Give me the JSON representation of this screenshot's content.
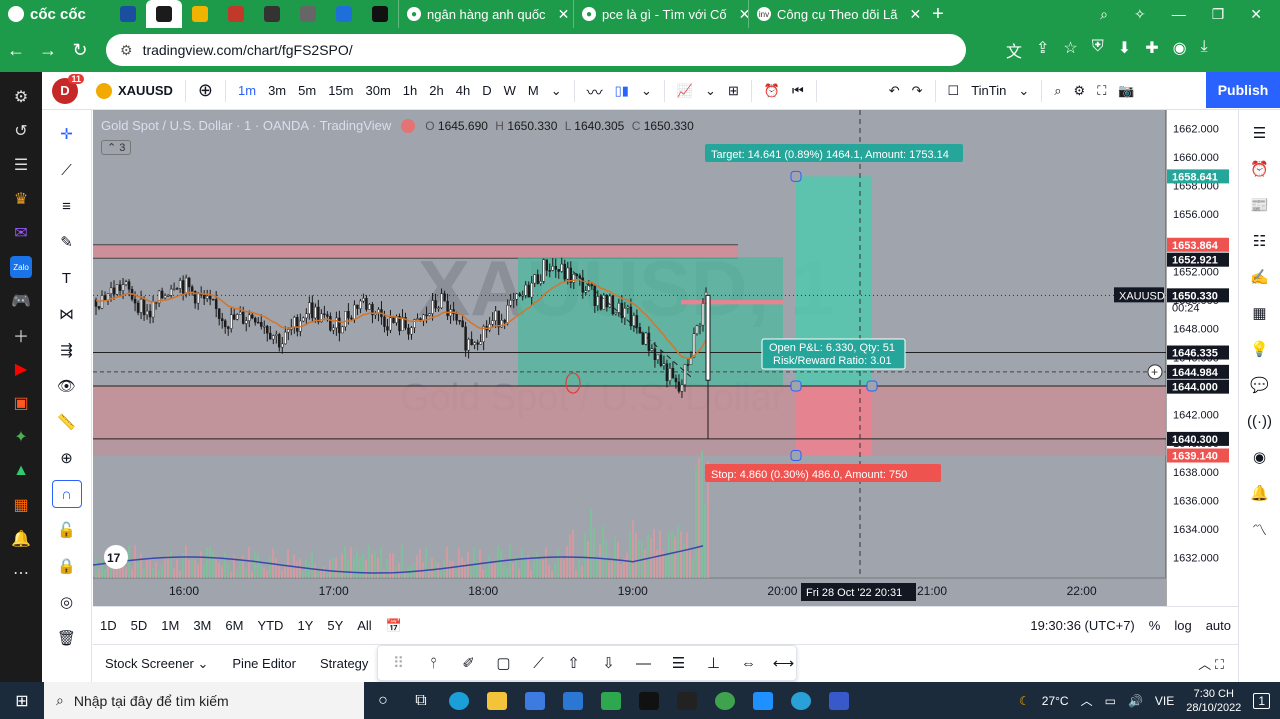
{
  "browser": {
    "brand": "cốc cốc",
    "tabs": [
      {
        "title": "ngân hàng anh quốc",
        "close": "✕"
      },
      {
        "title": "pce là gì - Tìm với Cố",
        "close": "✕"
      },
      {
        "title": "Công cụ Theo dõi Lã",
        "close": "✕"
      }
    ],
    "pinned_favicon_colors": [
      "#1a4fa0",
      "#1b1b1b",
      "#f0b400",
      "#c0392b",
      "#333333",
      "#666666",
      "#1e6fd9",
      "#111111"
    ],
    "url": "tradingview.com/chart/fgFS2SPO/"
  },
  "tv": {
    "avatar": "D",
    "notifications": "11",
    "symbol": "XAUUSD",
    "intervals": [
      "1m",
      "3m",
      "5m",
      "15m",
      "30m",
      "1h",
      "2h",
      "4h",
      "D",
      "W",
      "M"
    ],
    "active_interval": "1m",
    "layout_name": "TinTin",
    "publish": "Publish",
    "legend": {
      "title": "Gold Spot / U.S. Dollar · 1 · OANDA · TradingView",
      "o_label": "O",
      "o": "1645.690",
      "h_label": "H",
      "h": "1650.330",
      "l_label": "L",
      "l": "1640.305",
      "c_label": "C",
      "c": "1650.330",
      "indicators_count": "3"
    },
    "watermark": {
      "symbol": "XAUUSD, 1",
      "name": "Gold Spot / U.S. Dollar"
    },
    "price_axis": [
      "1662.000",
      "1660.000",
      "1658.000",
      "1656.000",
      "1654.000",
      "1652.000",
      "1650.000",
      "1648.000",
      "1646.000",
      "1644.000",
      "1642.000",
      "1640.000",
      "1638.000",
      "1636.000",
      "1634.000",
      "1632.000"
    ],
    "price_tags": {
      "target": "1658.641",
      "red_upper": "1653.864",
      "black1": "1652.921",
      "current": "1650.330",
      "countdown": "00:24",
      "symbol_tag": "XAUUSD",
      "l1": "1646.335",
      "l2": "1644.984",
      "l3": "1644.000",
      "l4": "1640.300",
      "stop": "1639.140"
    },
    "time_axis": [
      "16:00",
      "17:00",
      "18:00",
      "19:00",
      "20:00",
      "21:00",
      "22:00"
    ],
    "crosshair_time": "Fri 28 Oct '22   20:31",
    "target_label": "Target: 14.641 (0.89%) 1464.1, Amount: 1753.14",
    "pnl_label_1": "Open P&L: 6.330, Qty: 51",
    "pnl_label_2": "Risk/Reward Ratio: 3.01",
    "stop_label": "Stop: 4.860 (0.30%) 486.0, Amount: 750",
    "ranges": [
      "1D",
      "5D",
      "1M",
      "3M",
      "6M",
      "YTD",
      "1Y",
      "5Y",
      "All"
    ],
    "clock": "19:30:36 (UTC+7)",
    "scale_opts": [
      "%",
      "log",
      "auto"
    ],
    "bottom_tabs": [
      "Stock Screener",
      "Pine Editor",
      "Strategy"
    ]
  },
  "taskbar": {
    "search_placeholder": "Nhập tại đây để tìm kiếm",
    "temperature": "27°C",
    "lang": "VIE",
    "time": "7:30 CH",
    "date": "28/10/2022",
    "notif_count": "1"
  },
  "chart_data": {
    "type": "candlestick",
    "symbol": "XAUUSD",
    "title": "Gold Spot / U.S. Dollar · 1 · OANDA",
    "ylim": [
      1631,
      1663
    ],
    "x": [
      "16:00",
      "17:00",
      "18:00",
      "19:00",
      "20:00",
      "21:00",
      "22:00"
    ],
    "path_price": [
      1650.0,
      1651.0,
      1649.0,
      1651.5,
      1650.0,
      1648.5,
      1649.0,
      1647.0,
      1649.5,
      1648.0,
      1650.0,
      1648.5,
      1648.0,
      1650.0,
      1647.0,
      1648.5,
      1650.0,
      1652.5,
      1651.5,
      1650.0,
      1649.0,
      1646.5,
      1643.5,
      1650.33
    ],
    "positions": [
      {
        "side": "long",
        "entry": 1644.0,
        "target": 1658.641,
        "stop": 1639.14
      },
      {
        "side": "short-zone",
        "top": 1653.864,
        "bottom": 1652.921
      }
    ],
    "volume_note": "volume histogram with moving average line"
  }
}
